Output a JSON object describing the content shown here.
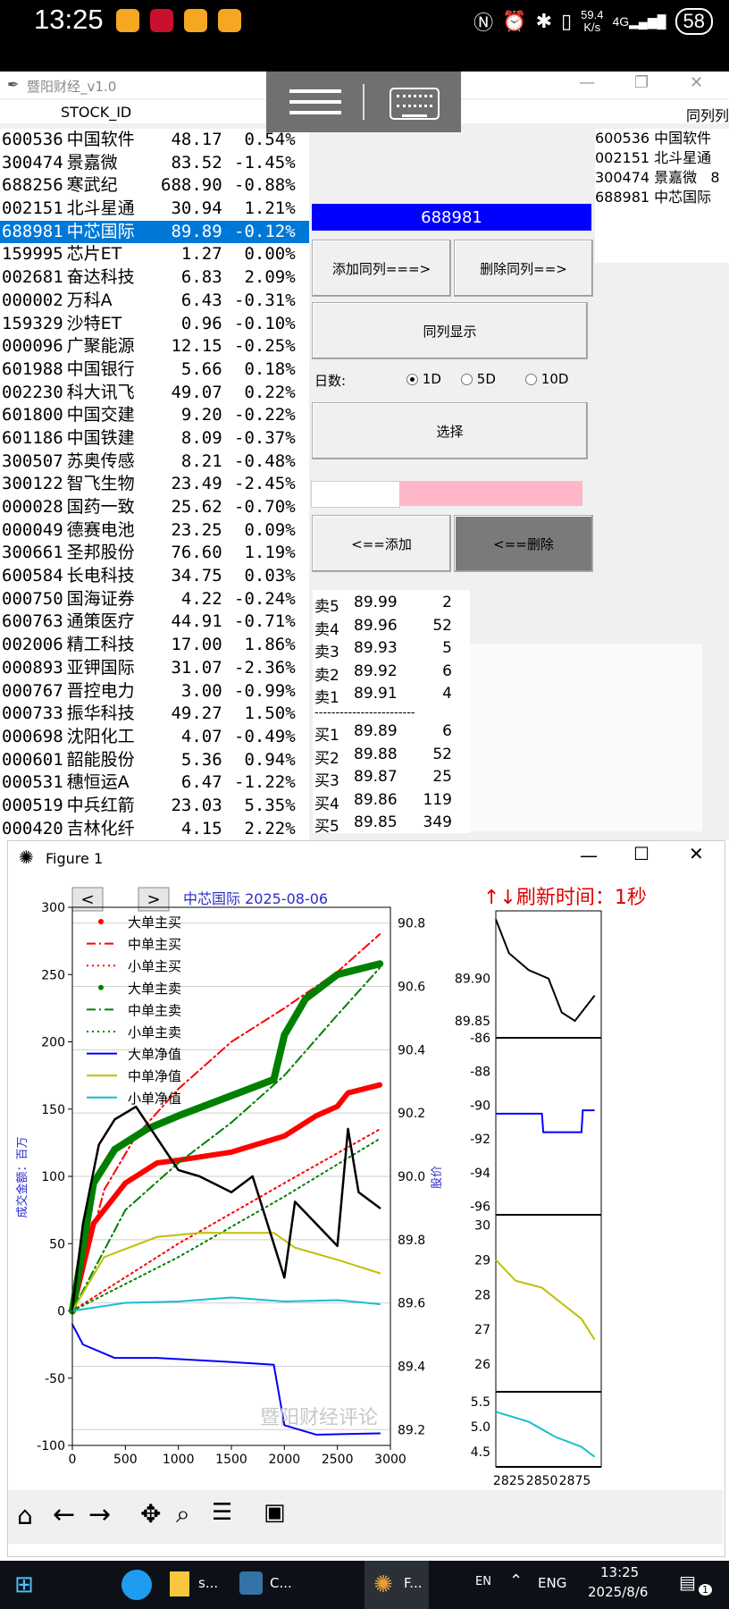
{
  "status_bar": {
    "time": "13:25",
    "net_speed": "59.4",
    "net_unit": "K/s",
    "net_type": "4G",
    "battery": "58"
  },
  "tk_window": {
    "title": "暨阳财经_v1.0",
    "column_header_left": "STOCK_ID",
    "column_header_right": "同列列",
    "stocks": [
      {
        "code": "600536",
        "name": "中国软件",
        "price": "48.17",
        "change": "0.54%"
      },
      {
        "code": "300474",
        "name": "景嘉微",
        "price": "83.52",
        "change": "-1.45%"
      },
      {
        "code": "688256",
        "name": "寒武纪",
        "price": "688.90",
        "change": "-0.88%"
      },
      {
        "code": "002151",
        "name": "北斗星通",
        "price": "30.94",
        "change": "1.21%"
      },
      {
        "code": "688981",
        "name": "中芯国际",
        "price": "89.89",
        "change": "-0.12%"
      },
      {
        "code": "159995",
        "name": "芯片ET",
        "price": "1.27",
        "change": "0.00%"
      },
      {
        "code": "002681",
        "name": "奋达科技",
        "price": "6.83",
        "change": "2.09%"
      },
      {
        "code": "000002",
        "name": "万科A",
        "price": "6.43",
        "change": "-0.31%"
      },
      {
        "code": "159329",
        "name": "沙特ET",
        "price": "0.96",
        "change": "-0.10%"
      },
      {
        "code": "000096",
        "name": "广聚能源",
        "price": "12.15",
        "change": "-0.25%"
      },
      {
        "code": "601988",
        "name": "中国银行",
        "price": "5.66",
        "change": "0.18%"
      },
      {
        "code": "002230",
        "name": "科大讯飞",
        "price": "49.07",
        "change": "0.22%"
      },
      {
        "code": "601800",
        "name": "中国交建",
        "price": "9.20",
        "change": "-0.22%"
      },
      {
        "code": "601186",
        "name": "中国铁建",
        "price": "8.09",
        "change": "-0.37%"
      },
      {
        "code": "300507",
        "name": "苏奥传感",
        "price": "8.21",
        "change": "-0.48%"
      },
      {
        "code": "300122",
        "name": "智飞生物",
        "price": "23.49",
        "change": "-2.45%"
      },
      {
        "code": "000028",
        "name": "国药一致",
        "price": "25.62",
        "change": "-0.70%"
      },
      {
        "code": "000049",
        "name": "德赛电池",
        "price": "23.25",
        "change": "0.09%"
      },
      {
        "code": "300661",
        "name": "圣邦股份",
        "price": "76.60",
        "change": "1.19%"
      },
      {
        "code": "600584",
        "name": "长电科技",
        "price": "34.75",
        "change": "0.03%"
      },
      {
        "code": "000750",
        "name": "国海证券",
        "price": "4.22",
        "change": "-0.24%"
      },
      {
        "code": "600763",
        "name": "通策医疗",
        "price": "44.91",
        "change": "-0.71%"
      },
      {
        "code": "002006",
        "name": "精工科技",
        "price": "17.00",
        "change": "1.86%"
      },
      {
        "code": "000893",
        "name": "亚钾国际",
        "price": "31.07",
        "change": "-2.36%"
      },
      {
        "code": "000767",
        "name": "晋控电力",
        "price": "3.00",
        "change": "-0.99%"
      },
      {
        "code": "000733",
        "name": "振华科技",
        "price": "49.27",
        "change": "1.50%"
      },
      {
        "code": "000698",
        "name": "沈阳化工",
        "price": "4.07",
        "change": "-0.49%"
      },
      {
        "code": "000601",
        "name": "韶能股份",
        "price": "5.36",
        "change": "0.94%"
      },
      {
        "code": "000531",
        "name": "穗恒运A",
        "price": "6.47",
        "change": "-1.22%"
      },
      {
        "code": "000519",
        "name": "中兵红箭",
        "price": "23.03",
        "change": "5.35%"
      },
      {
        "code": "000420",
        "name": "吉林化纤",
        "price": "4.15",
        "change": "2.22%"
      }
    ],
    "selected_index": 4,
    "selected_code": "688981",
    "peers": [
      {
        "code": "600536",
        "name": "中国软件"
      },
      {
        "code": "002151",
        "name": "北斗星通"
      },
      {
        "code": "300474",
        "name": "景嘉微",
        "extra": "8"
      },
      {
        "code": "688981",
        "name": "中芯国际"
      }
    ],
    "buttons": {
      "add_peer": "添加同列===>",
      "del_peer": "删除同列==>",
      "show_peer": "同列显示",
      "select": "选择",
      "add": "<==添加",
      "delete": "<==删除"
    },
    "days_label": "日数:",
    "days_options": [
      "1D",
      "5D",
      "10D"
    ],
    "days_selected": "1D",
    "orderbook": {
      "asks": [
        {
          "label": "卖5",
          "price": "89.99",
          "vol": "2"
        },
        {
          "label": "卖4",
          "price": "89.96",
          "vol": "52"
        },
        {
          "label": "卖3",
          "price": "89.93",
          "vol": "5"
        },
        {
          "label": "卖2",
          "price": "89.92",
          "vol": "6"
        },
        {
          "label": "卖1",
          "price": "89.91",
          "vol": "4"
        }
      ],
      "separator": "------------------------",
      "bids": [
        {
          "label": "买1",
          "price": "89.89",
          "vol": "6"
        },
        {
          "label": "买2",
          "price": "89.88",
          "vol": "52"
        },
        {
          "label": "买3",
          "price": "89.87",
          "vol": "25"
        },
        {
          "label": "买4",
          "price": "89.86",
          "vol": "119"
        },
        {
          "label": "买5",
          "price": "89.85",
          "vol": "349"
        }
      ]
    }
  },
  "figure": {
    "window_title": "Figure 1",
    "subtitle": "中芯国际  2025-08-06",
    "refresh": "↑↓刷新时间：1秒",
    "watermark": "暨阳财经评论",
    "nav_prev": "<",
    "nav_next": ">",
    "colors": {
      "red": "#ff0000",
      "green": "#008000",
      "blue": "#0000ff",
      "olive": "#bfbf00",
      "cyan": "#17becf",
      "black": "#000000"
    }
  },
  "chart_data": [
    {
      "type": "line",
      "ylabel": "成交金额：百万",
      "y2label": "股价",
      "xlim": [
        0,
        3000
      ],
      "ylim": [
        -100,
        300
      ],
      "y2lim": [
        89.15,
        90.85
      ],
      "xticks": [
        "0",
        "500",
        "1000",
        "1500",
        "2000",
        "2500",
        "3000"
      ],
      "yticks": [
        "300",
        "250",
        "200",
        "150",
        "100",
        "50",
        "0",
        "-50",
        "-100"
      ],
      "y2ticks": [
        "90.8",
        "90.6",
        "90.4",
        "90.2",
        "90.0",
        "89.8",
        "89.6",
        "89.4",
        "89.2"
      ],
      "legend": [
        "大单主买",
        "中单主买",
        "小单主买",
        "大单主卖",
        "中单主卖",
        "小单主卖",
        "大单净值",
        "中单净值",
        "小单净值"
      ],
      "legend_placement": "upper-left",
      "series": [
        {
          "name": "大单主买",
          "x": [
            0,
            200,
            500,
            800,
            1000,
            1500,
            2000,
            2300,
            2500,
            2600,
            2900
          ],
          "y": [
            0,
            65,
            95,
            110,
            112,
            118,
            130,
            145,
            152,
            162,
            168
          ]
        },
        {
          "name": "中单主买",
          "x": [
            0,
            300,
            600,
            1000,
            1500,
            2000,
            2500,
            2900
          ],
          "y": [
            0,
            90,
            130,
            165,
            200,
            225,
            252,
            280
          ]
        },
        {
          "name": "小单主买",
          "x": [
            0,
            1000,
            2000,
            2900
          ],
          "y": [
            0,
            50,
            95,
            135
          ]
        },
        {
          "name": "大单主卖",
          "x": [
            0,
            200,
            400,
            700,
            1000,
            1500,
            1900,
            2000,
            2200,
            2500,
            2900
          ],
          "y": [
            0,
            95,
            120,
            135,
            145,
            160,
            172,
            205,
            232,
            250,
            258
          ]
        },
        {
          "name": "中单主卖",
          "x": [
            0,
            500,
            1000,
            1500,
            2000,
            2500,
            2900
          ],
          "y": [
            0,
            75,
            110,
            140,
            175,
            220,
            255
          ]
        },
        {
          "name": "小单主卖",
          "x": [
            0,
            1000,
            2000,
            2900
          ],
          "y": [
            0,
            40,
            85,
            128
          ]
        },
        {
          "name": "大单净值",
          "x": [
            0,
            100,
            400,
            800,
            1500,
            1900,
            2000,
            2300,
            2900
          ],
          "y": [
            -10,
            -25,
            -35,
            -35,
            -38,
            -40,
            -85,
            -92,
            -91
          ]
        },
        {
          "name": "中单净值",
          "x": [
            0,
            300,
            800,
            1200,
            1900,
            2100,
            2500,
            2900
          ],
          "y": [
            0,
            40,
            55,
            58,
            58,
            47,
            38,
            28
          ]
        },
        {
          "name": "小单净值",
          "x": [
            0,
            500,
            1000,
            1500,
            2000,
            2500,
            2900
          ],
          "y": [
            0,
            6,
            7,
            10,
            7,
            8,
            5
          ]
        },
        {
          "name": "股价",
          "axis": "y2",
          "x": [
            0,
            100,
            250,
            400,
            600,
            800,
            1000,
            1200,
            1500,
            1700,
            2000,
            2100,
            2300,
            2500,
            2600,
            2700,
            2900
          ],
          "y": [
            89.58,
            89.85,
            90.1,
            90.18,
            90.22,
            90.12,
            90.02,
            90.0,
            89.95,
            90.0,
            89.68,
            89.92,
            89.85,
            89.78,
            90.15,
            89.95,
            89.9
          ]
        }
      ]
    },
    {
      "type": "line",
      "xlim": [
        2815,
        2895
      ],
      "xticks": [
        "2825",
        "2850",
        "2875"
      ],
      "panels": [
        {
          "ylim": [
            89.83,
            89.98
          ],
          "yticks": [
            "89.90",
            "89.85"
          ],
          "series": [
            {
              "x": [
                2815,
                2825,
                2840,
                2855,
                2865,
                2875,
                2885,
                2890
              ],
              "y": [
                89.97,
                89.93,
                89.91,
                89.9,
                89.86,
                89.85,
                89.87,
                89.88
              ]
            }
          ]
        },
        {
          "ylim": [
            -96.5,
            -86
          ],
          "yticks": [
            "-86",
            "-88",
            "-90",
            "-92",
            "-94",
            "-96"
          ],
          "series": [
            {
              "x": [
                2815,
                2850,
                2851,
                2880,
                2881,
                2890
              ],
              "y": [
                -90.5,
                -90.5,
                -91.6,
                -91.6,
                -90.3,
                -90.3
              ]
            }
          ]
        },
        {
          "ylim": [
            25.2,
            30.3
          ],
          "yticks": [
            "30",
            "29",
            "28",
            "27",
            "26"
          ],
          "series": [
            {
              "x": [
                2815,
                2830,
                2850,
                2870,
                2880,
                2890
              ],
              "y": [
                29.0,
                28.4,
                28.2,
                27.6,
                27.3,
                26.7
              ]
            }
          ]
        },
        {
          "ylim": [
            4.2,
            5.7
          ],
          "yticks": [
            "5.5",
            "5.0",
            "4.5"
          ],
          "series": [
            {
              "x": [
                2815,
                2840,
                2860,
                2880,
                2890
              ],
              "y": [
                5.3,
                5.1,
                4.8,
                4.6,
                4.4
              ]
            }
          ]
        }
      ]
    }
  ],
  "taskbar": {
    "items": [
      "s...",
      "C...",
      "F..."
    ],
    "lang1": "EN",
    "lang2": "ENG",
    "time": "13:25",
    "date": "2025/8/6",
    "notif": "1"
  }
}
